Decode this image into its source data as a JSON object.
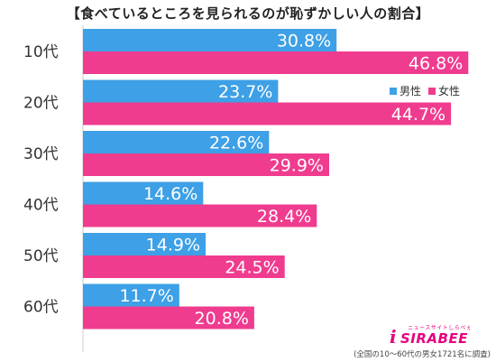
{
  "title": "【食べているところを見られるのが恥ずかしい人の割合】",
  "legend": {
    "male": "男性",
    "female": "女性"
  },
  "colors": {
    "male": "#3ea0e6",
    "female": "#ef3c8f"
  },
  "footnote": "(全国の10～60代の男女1721名に調査)",
  "logo": {
    "text": "SIRABEE",
    "sub": "ニュースサイトしらべぇ"
  },
  "chart_data": {
    "type": "bar",
    "orientation": "horizontal",
    "title": "【食べているところを見られるのが恥ずかしい人の割合】",
    "categories": [
      "10代",
      "20代",
      "30代",
      "40代",
      "50代",
      "60代"
    ],
    "series": [
      {
        "name": "男性",
        "values": [
          30.8,
          23.7,
          22.6,
          14.6,
          14.9,
          11.7
        ],
        "labels": [
          "30.8%",
          "23.7%",
          "22.6%",
          "14.6%",
          "14.9%",
          "11.7%"
        ]
      },
      {
        "name": "女性",
        "values": [
          46.8,
          44.7,
          29.9,
          28.4,
          24.5,
          20.8
        ],
        "labels": [
          "46.8%",
          "44.7%",
          "29.9%",
          "28.4%",
          "24.5%",
          "20.8%"
        ]
      }
    ],
    "xlim": [
      0,
      50
    ],
    "grid": false,
    "legend_position": "top-right"
  }
}
